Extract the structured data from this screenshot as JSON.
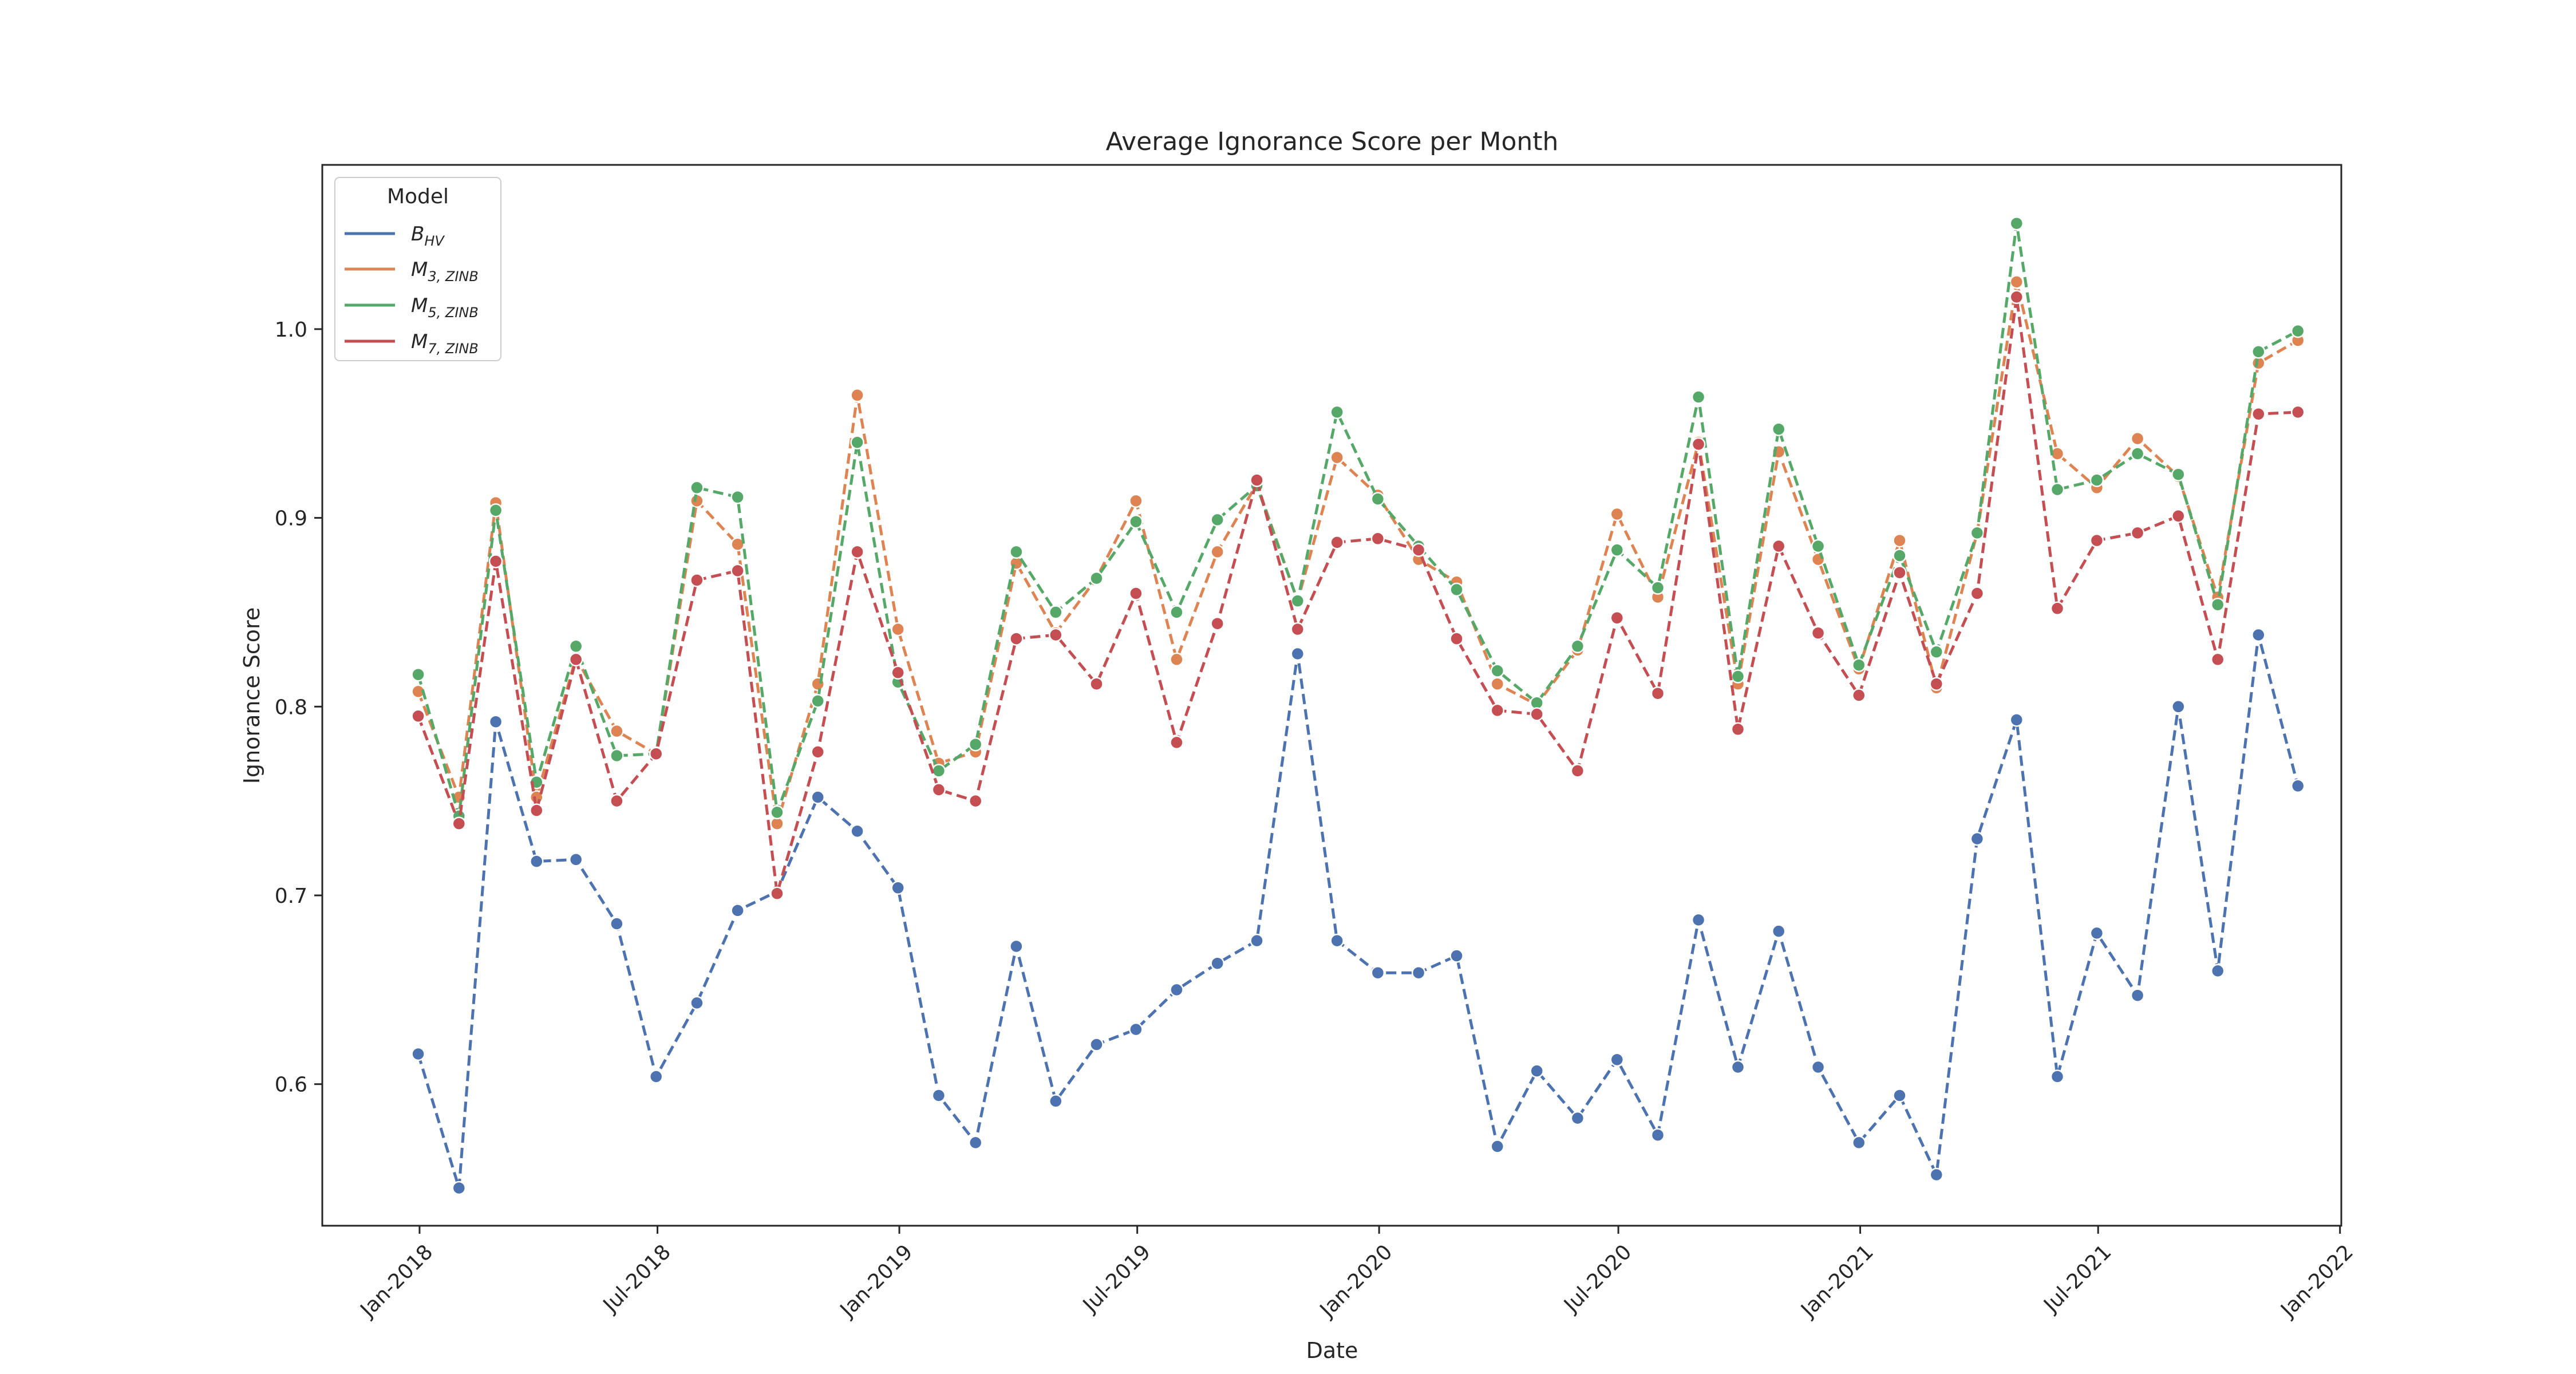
{
  "chart_data": {
    "type": "line",
    "title": "Average Ignorance Score per Month",
    "xlabel": "Date",
    "ylabel": "Ignorance Score",
    "x_axis_type": "date",
    "xlim": [
      "2017-10-19",
      "2022-01-02"
    ],
    "ylim": [
      0.525,
      1.087
    ],
    "x_ticks": [
      {
        "date": "2018-01-01",
        "label": "Jan-2018"
      },
      {
        "date": "2018-07-01",
        "label": "Jul-2018"
      },
      {
        "date": "2019-01-01",
        "label": "Jan-2019"
      },
      {
        "date": "2019-07-01",
        "label": "Jul-2019"
      },
      {
        "date": "2020-01-01",
        "label": "Jan-2020"
      },
      {
        "date": "2020-07-01",
        "label": "Jul-2020"
      },
      {
        "date": "2021-01-01",
        "label": "Jan-2021"
      },
      {
        "date": "2021-07-01",
        "label": "Jul-2021"
      },
      {
        "date": "2022-01-01",
        "label": "Jan-2022"
      }
    ],
    "y_ticks": [
      {
        "value": 0.6,
        "label": "0.6"
      },
      {
        "value": 0.7,
        "label": "0.7"
      },
      {
        "value": 0.8,
        "label": "0.8"
      },
      {
        "value": 0.9,
        "label": "0.9"
      },
      {
        "value": 1.0,
        "label": "1.0"
      }
    ],
    "grid": false,
    "legend": {
      "title": "Model",
      "placement": "upper-left"
    },
    "line_style": "dashed",
    "markers": "circle",
    "x": [
      "2017-12-31",
      "2018-01-31",
      "2018-02-28",
      "2018-03-31",
      "2018-04-30",
      "2018-05-31",
      "2018-06-30",
      "2018-07-31",
      "2018-08-31",
      "2018-09-30",
      "2018-10-31",
      "2018-11-30",
      "2018-12-31",
      "2019-01-31",
      "2019-02-28",
      "2019-03-31",
      "2019-04-30",
      "2019-05-31",
      "2019-06-30",
      "2019-07-31",
      "2019-08-31",
      "2019-09-30",
      "2019-10-31",
      "2019-11-30",
      "2019-12-31",
      "2020-01-31",
      "2020-02-29",
      "2020-03-31",
      "2020-04-30",
      "2020-05-31",
      "2020-06-30",
      "2020-07-31",
      "2020-08-31",
      "2020-09-30",
      "2020-10-31",
      "2020-11-30",
      "2020-12-31",
      "2021-01-31",
      "2021-02-28",
      "2021-03-31",
      "2021-04-30",
      "2021-05-31",
      "2021-06-30",
      "2021-07-31",
      "2021-08-31",
      "2021-09-30",
      "2021-10-31",
      "2021-11-30"
    ],
    "series": [
      {
        "name": "B",
        "subscript": "HV",
        "color": "#4c72b0",
        "values": [
          0.616,
          0.545,
          0.792,
          0.718,
          0.719,
          0.685,
          0.604,
          0.643,
          0.692,
          0.702,
          0.752,
          0.734,
          0.704,
          0.594,
          0.569,
          0.673,
          0.591,
          0.621,
          0.629,
          0.65,
          0.664,
          0.676,
          0.828,
          0.676,
          0.659,
          0.659,
          0.668,
          0.567,
          0.607,
          0.582,
          0.613,
          0.573,
          0.687,
          0.609,
          0.681,
          0.609,
          0.569,
          0.594,
          0.552,
          0.73,
          0.793,
          0.604,
          0.68,
          0.647,
          0.8,
          0.66,
          0.838,
          0.758
        ]
      },
      {
        "name": "M",
        "subscript": "3, ZINB",
        "color": "#dd8452",
        "values": [
          0.808,
          0.752,
          0.908,
          0.752,
          0.826,
          0.787,
          0.775,
          0.909,
          0.886,
          0.738,
          0.812,
          0.965,
          0.841,
          0.77,
          0.776,
          0.876,
          0.839,
          0.868,
          0.909,
          0.825,
          0.882,
          0.918,
          0.856,
          0.932,
          0.912,
          0.878,
          0.866,
          0.812,
          0.801,
          0.83,
          0.902,
          0.858,
          0.94,
          0.812,
          0.935,
          0.878,
          0.82,
          0.888,
          0.81,
          0.892,
          1.025,
          0.934,
          0.916,
          0.942,
          0.922,
          0.858,
          0.982,
          0.994
        ]
      },
      {
        "name": "M",
        "subscript": "5, ZINB",
        "color": "#55a868",
        "values": [
          0.817,
          0.742,
          0.904,
          0.76,
          0.832,
          0.774,
          0.775,
          0.916,
          0.911,
          0.744,
          0.803,
          0.94,
          0.813,
          0.766,
          0.78,
          0.882,
          0.85,
          0.868,
          0.898,
          0.85,
          0.899,
          0.917,
          0.856,
          0.956,
          0.91,
          0.885,
          0.862,
          0.819,
          0.802,
          0.832,
          0.883,
          0.863,
          0.964,
          0.816,
          0.947,
          0.885,
          0.822,
          0.88,
          0.829,
          0.892,
          1.056,
          0.915,
          0.92,
          0.934,
          0.923,
          0.854,
          0.988,
          0.999
        ]
      },
      {
        "name": "M",
        "subscript": "7, ZINB",
        "color": "#c44e52",
        "values": [
          0.795,
          0.738,
          0.877,
          0.745,
          0.825,
          0.75,
          0.775,
          0.867,
          0.872,
          0.701,
          0.776,
          0.882,
          0.818,
          0.756,
          0.75,
          0.836,
          0.838,
          0.812,
          0.86,
          0.781,
          0.844,
          0.92,
          0.841,
          0.887,
          0.889,
          0.883,
          0.836,
          0.798,
          0.796,
          0.766,
          0.847,
          0.807,
          0.939,
          0.788,
          0.885,
          0.839,
          0.806,
          0.871,
          0.812,
          0.86,
          1.017,
          0.852,
          0.888,
          0.892,
          0.901,
          0.825,
          0.955,
          0.956
        ]
      }
    ]
  }
}
